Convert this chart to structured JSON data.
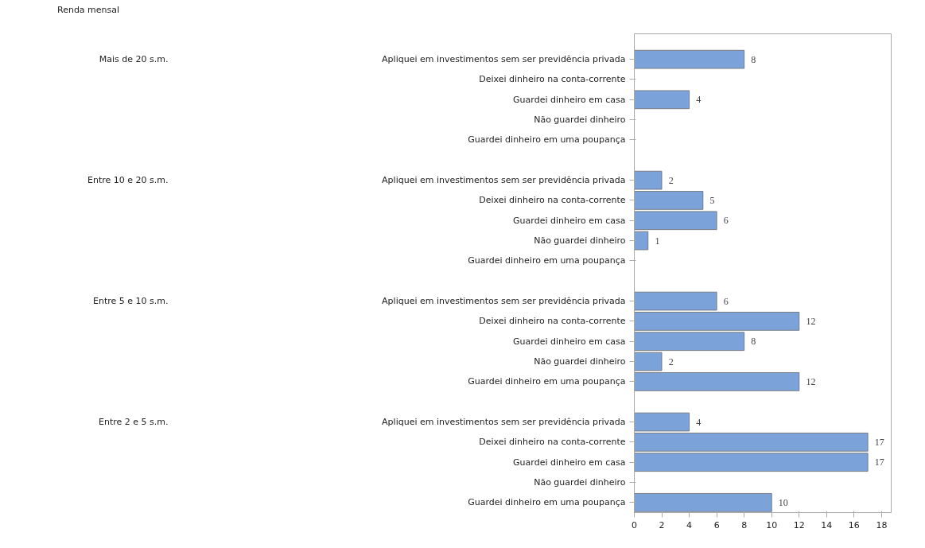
{
  "chart_data": {
    "type": "bar",
    "orientation": "horizontal",
    "title": "Renda mensal",
    "annotations": [
      "Mais de 20 s.m.",
      "Entre 10 e 20 s.m.",
      "Entre 5 e 10 s.m.",
      "Entre 2 e 5 s.m."
    ],
    "categories": [
      "Apliquei em investimentos sem ser previdência privada",
      "Deixei dinheiro na conta-corrente",
      "Guardei dinheiro em casa",
      "Não guardei dinheiro",
      "Guardei dinheiro em uma poupança",
      "Apliquei em investimentos sem ser previdência privada",
      "Deixei dinheiro na conta-corrente",
      "Guardei dinheiro em casa",
      "Não guardei dinheiro",
      "Guardei dinheiro em uma poupança",
      "Apliquei em investimentos sem ser previdência privada",
      "Deixei dinheiro na conta-corrente",
      "Guardei dinheiro em casa",
      "Não guardei dinheiro",
      "Guardei dinheiro em uma poupança",
      "Apliquei em investimentos sem ser previdência privada",
      "Deixei dinheiro na conta-corrente",
      "Guardei dinheiro em casa",
      "Não guardei dinheiro",
      "Guardei dinheiro em uma poupança"
    ],
    "values": [
      8,
      null,
      4,
      null,
      null,
      2,
      5,
      6,
      1,
      null,
      6,
      12,
      8,
      2,
      12,
      4,
      17,
      17,
      null,
      10
    ],
    "color": "#7ba3d9",
    "data_labels": true,
    "grid": false,
    "xlim": [
      0,
      18.7
    ],
    "xticks": [
      0,
      2,
      4,
      6,
      8,
      10,
      12,
      14,
      16,
      18
    ]
  }
}
